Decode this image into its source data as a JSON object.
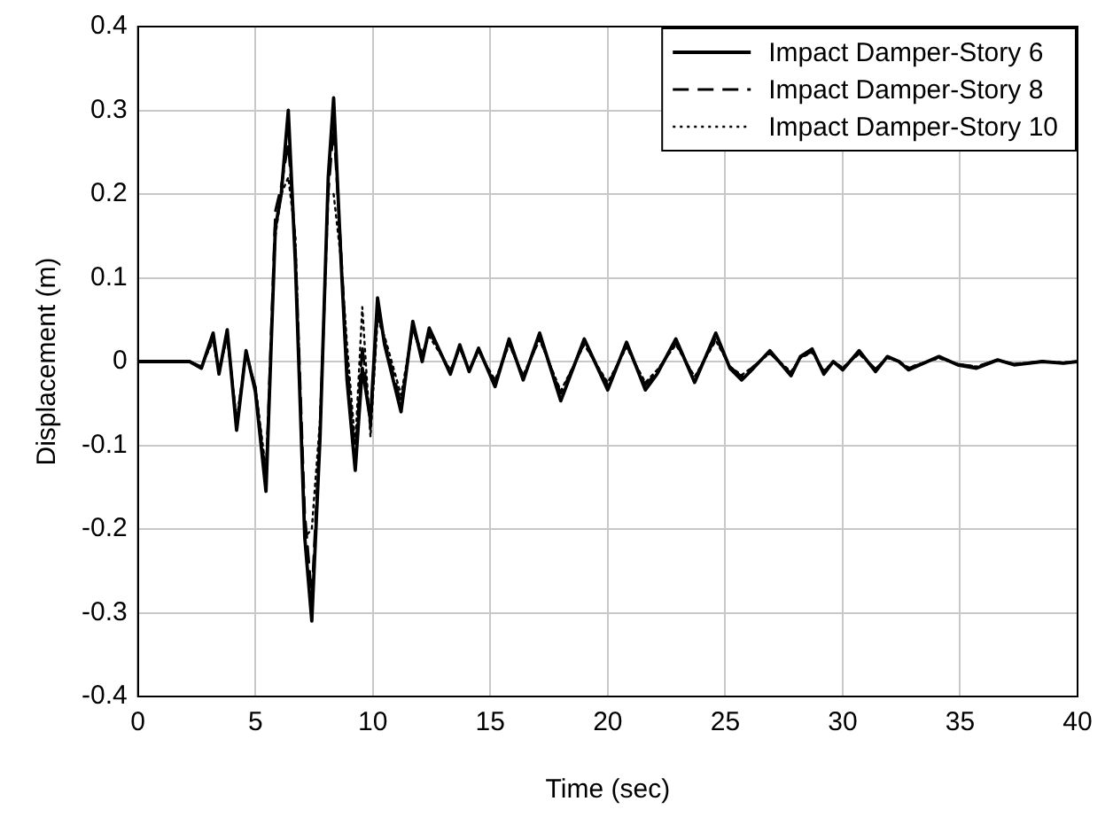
{
  "chart_data": {
    "type": "line",
    "xlabel": "Time (sec)",
    "ylabel": "Displacement (m)",
    "x": [
      0,
      2.2,
      2.7,
      3.2,
      3.45,
      3.8,
      4.2,
      4.6,
      5.0,
      5.45,
      5.85,
      6.1,
      6.4,
      6.7,
      7.1,
      7.4,
      7.75,
      8.1,
      8.33,
      8.65,
      8.9,
      9.25,
      9.55,
      9.9,
      10.2,
      10.5,
      11.2,
      11.7,
      12.1,
      12.4,
      13.3,
      13.7,
      14.1,
      14.5,
      15.2,
      15.8,
      16.4,
      17.1,
      18.0,
      19.0,
      20.0,
      20.8,
      21.6,
      22.1,
      22.9,
      23.7,
      24.6,
      25.2,
      25.7,
      26.2,
      26.9,
      27.8,
      28.2,
      28.7,
      29.2,
      29.6,
      30.0,
      30.7,
      31.4,
      31.9,
      32.4,
      32.8,
      34.1,
      34.9,
      35.7,
      36.6,
      37.3,
      38.5,
      39.4,
      40
    ],
    "series": [
      {
        "name": "Impact Damper-Story 6",
        "color": "#000000",
        "line_style": "solid",
        "values": [
          0,
          0,
          -0.008,
          0.034,
          -0.015,
          0.038,
          -0.082,
          0.013,
          -0.036,
          -0.155,
          0.16,
          0.2,
          0.3,
          0.118,
          -0.21,
          -0.31,
          -0.092,
          0.22,
          0.315,
          0.118,
          -0.022,
          -0.13,
          -0.008,
          -0.07,
          0.076,
          0.02,
          -0.06,
          0.048,
          0,
          0.04,
          -0.015,
          0.02,
          -0.012,
          0.016,
          -0.03,
          0.027,
          -0.022,
          0.034,
          -0.047,
          0.027,
          -0.034,
          0.023,
          -0.034,
          -0.015,
          0.027,
          -0.025,
          0.034,
          -0.008,
          -0.022,
          -0.008,
          0.013,
          -0.017,
          0.006,
          0.015,
          -0.015,
          0,
          -0.01,
          0.013,
          -0.012,
          0.006,
          0,
          -0.01,
          0.006,
          -0.004,
          -0.008,
          0.002,
          -0.004,
          0,
          -0.002,
          0
        ]
      },
      {
        "name": "Impact Damper-Story 8",
        "color": "#000000",
        "line_style": "dashed",
        "values": [
          0,
          0,
          -0.006,
          0.028,
          -0.012,
          0.032,
          -0.072,
          0.01,
          -0.03,
          -0.14,
          0.18,
          0.21,
          0.26,
          0.14,
          -0.18,
          -0.28,
          -0.08,
          0.2,
          0.28,
          0.13,
          0,
          -0.115,
          0.02,
          -0.08,
          0.06,
          0.025,
          -0.05,
          0.04,
          0.005,
          0.035,
          -0.012,
          0.016,
          -0.01,
          0.013,
          -0.025,
          0.022,
          -0.018,
          0.028,
          -0.038,
          0.022,
          -0.028,
          0.019,
          -0.028,
          -0.012,
          0.022,
          -0.02,
          0.028,
          -0.006,
          -0.018,
          -0.006,
          0.01,
          -0.014,
          0.005,
          0.012,
          -0.012,
          0,
          -0.008,
          0.01,
          -0.009,
          0.005,
          0,
          -0.008,
          0.005,
          -0.003,
          -0.006,
          0.002,
          -0.003,
          0,
          -0.002,
          0
        ]
      },
      {
        "name": "Impact Damper-Story 10",
        "color": "#000000",
        "line_style": "dotted",
        "values": [
          0,
          0,
          -0.006,
          0.025,
          -0.012,
          0.03,
          -0.07,
          0.01,
          -0.03,
          -0.13,
          0.15,
          0.2,
          0.22,
          0.15,
          -0.21,
          -0.2,
          -0.07,
          0.2,
          0.2,
          0.12,
          0.02,
          -0.1,
          0.065,
          -0.09,
          0.05,
          0.03,
          -0.04,
          0.04,
          0.01,
          0.03,
          -0.01,
          0.015,
          -0.01,
          0.012,
          -0.022,
          0.02,
          -0.016,
          0.026,
          -0.035,
          0.02,
          -0.025,
          0.017,
          -0.025,
          -0.01,
          0.02,
          -0.018,
          0.025,
          -0.006,
          -0.016,
          -0.006,
          0.01,
          -0.012,
          0.004,
          0.011,
          -0.011,
          0,
          -0.007,
          0.009,
          -0.009,
          0.004,
          0,
          -0.007,
          0.004,
          -0.003,
          -0.006,
          0.001,
          -0.003,
          0,
          -0.001,
          0
        ]
      }
    ],
    "xlim": [
      0,
      40
    ],
    "xticks": [
      0,
      5,
      10,
      15,
      20,
      25,
      30,
      35,
      40
    ],
    "ylim": [
      -0.4,
      0.4
    ],
    "yticks": [
      -0.4,
      -0.3,
      -0.2,
      -0.1,
      0,
      0.1,
      0.2,
      0.3,
      0.4
    ],
    "grid": true,
    "legend": "top right",
    "marker": "none"
  }
}
